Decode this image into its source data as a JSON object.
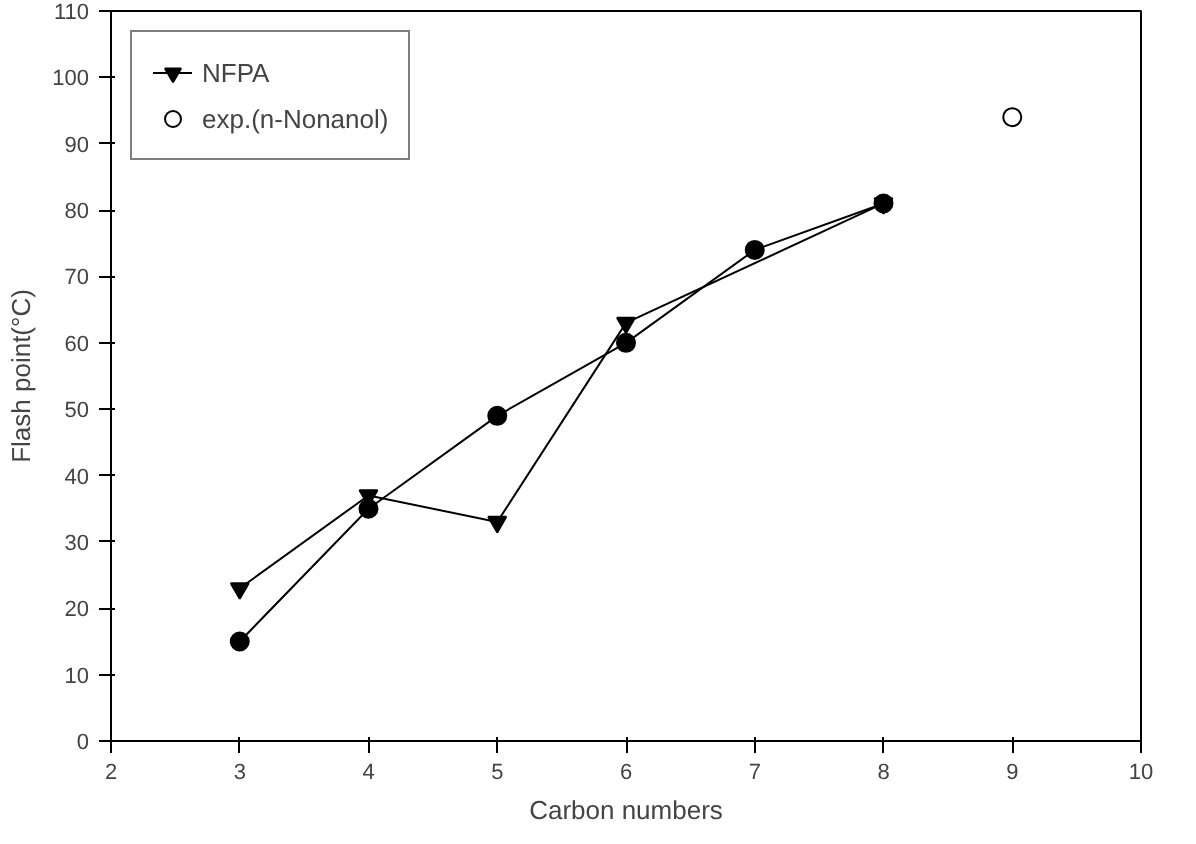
{
  "chart_data": {
    "type": "line",
    "xlabel": "Carbon numbers",
    "ylabel": "Flash point(°C)",
    "xlim": [
      2,
      10
    ],
    "xticks": [
      2,
      3,
      4,
      5,
      6,
      7,
      8,
      9,
      10
    ],
    "ylim": [
      0,
      110
    ],
    "yticks": [
      0,
      10,
      20,
      30,
      40,
      50,
      60,
      70,
      80,
      90,
      100,
      110
    ],
    "grid": false,
    "legend": "top left",
    "line_style": "solid",
    "series": [
      {
        "name": "NFPA",
        "color": "#000000",
        "marker": "triangle",
        "x": [
          3,
          4,
          5,
          6,
          8
        ],
        "values": [
          23,
          37,
          33,
          63,
          81
        ]
      },
      {
        "color": "#000000",
        "marker": "circle",
        "x": [
          3,
          4,
          5,
          6,
          7,
          8
        ],
        "values": [
          15,
          35,
          49,
          60,
          74,
          81
        ]
      },
      {
        "name": "exp.(n-Nonanol)",
        "type": "scatter",
        "color": "#000000",
        "marker": "open_circle",
        "x": [
          9
        ],
        "values": [
          94
        ]
      }
    ]
  }
}
